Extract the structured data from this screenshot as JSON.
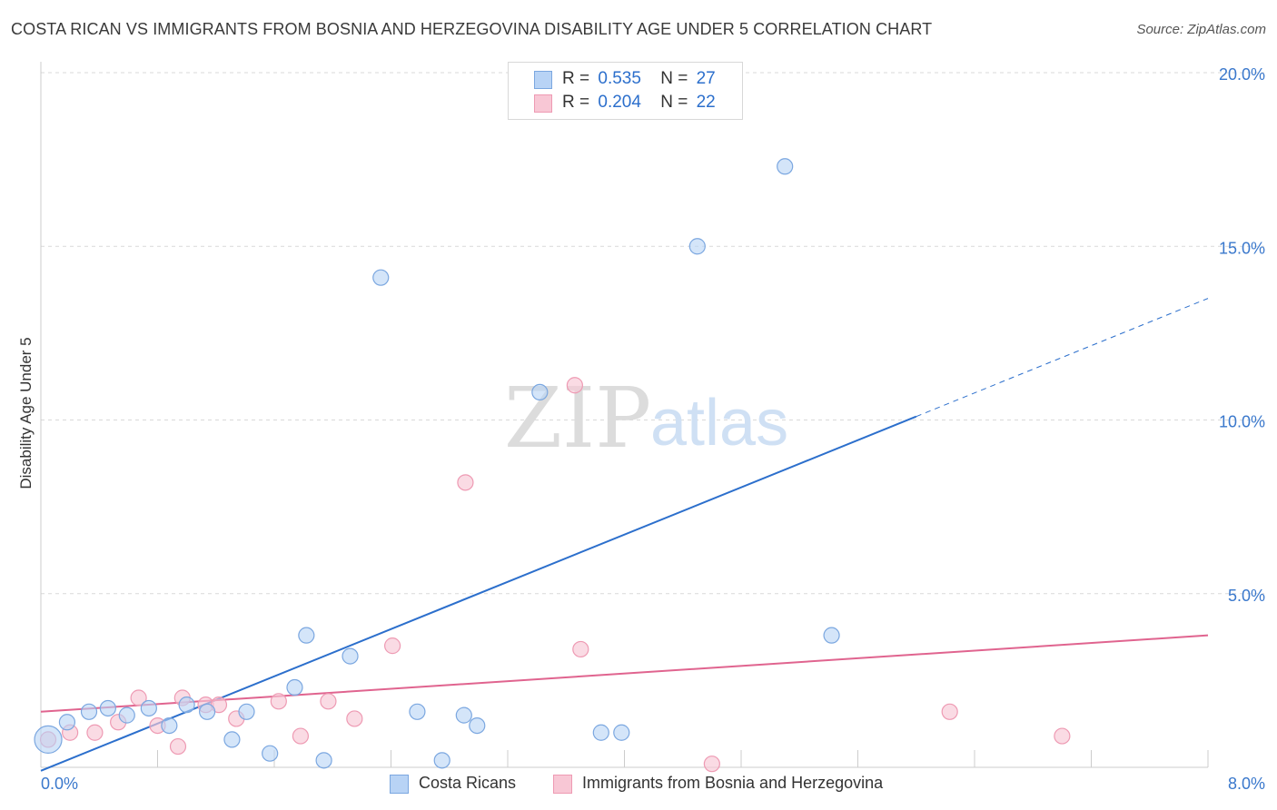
{
  "title": "COSTA RICAN VS IMMIGRANTS FROM BOSNIA AND HERZEGOVINA DISABILITY AGE UNDER 5 CORRELATION CHART",
  "source": "Source: ZipAtlas.com",
  "watermark": {
    "zip": "ZIP",
    "atlas": "atlas"
  },
  "legend": {
    "rows": [
      {
        "r_label": "R =",
        "r_value": "0.535",
        "n_label": "N =",
        "n_value": "27"
      },
      {
        "r_label": "R =",
        "r_value": "0.204",
        "n_label": "N =",
        "n_value": "22"
      }
    ]
  },
  "bottom_legend": [
    "Costa Ricans",
    "Immigrants from Bosnia and Herzegovina"
  ],
  "colors": {
    "blue_fill": "#b8d3f5",
    "blue_stroke": "#7ba7e0",
    "blue_line": "#2c6fcc",
    "pink_fill": "#f8c7d5",
    "pink_stroke": "#ee9ab3",
    "pink_line": "#e0648f",
    "tick_label": "#3a78cc",
    "grid": "#d9d9d9"
  },
  "chart_data": {
    "type": "scatter",
    "title": "COSTA RICAN VS IMMIGRANTS FROM BOSNIA AND HERZEGOVINA DISABILITY AGE UNDER 5 CORRELATION CHART",
    "xlabel": "",
    "ylabel": "Disability Age Under 5",
    "xlim": [
      0,
      8
    ],
    "ylim": [
      0,
      20
    ],
    "x_tick_labels": [
      "0.0%",
      "8.0%"
    ],
    "y_ticks": [
      5,
      10,
      15,
      20
    ],
    "y_tick_labels": [
      "5.0%",
      "10.0%",
      "15.0%",
      "20.0%"
    ],
    "grid": true,
    "legend_position": "top-center",
    "series": [
      {
        "name": "Costa Ricans",
        "r": 0.535,
        "n": 27,
        "points": [
          [
            0.05,
            0.8
          ],
          [
            0.18,
            1.3
          ],
          [
            0.33,
            1.6
          ],
          [
            0.46,
            1.7
          ],
          [
            0.59,
            1.5
          ],
          [
            0.74,
            1.7
          ],
          [
            0.88,
            1.2
          ],
          [
            1.0,
            1.8
          ],
          [
            1.14,
            1.6
          ],
          [
            1.31,
            0.8
          ],
          [
            1.41,
            1.6
          ],
          [
            1.57,
            0.4
          ],
          [
            1.74,
            2.3
          ],
          [
            1.82,
            3.8
          ],
          [
            1.94,
            0.2
          ],
          [
            2.12,
            3.2
          ],
          [
            2.33,
            14.1
          ],
          [
            2.58,
            1.6
          ],
          [
            2.75,
            0.2
          ],
          [
            2.9,
            1.5
          ],
          [
            2.99,
            1.2
          ],
          [
            3.42,
            10.8
          ],
          [
            3.84,
            1.0
          ],
          [
            3.98,
            1.0
          ],
          [
            4.5,
            15.0
          ],
          [
            5.1,
            17.3
          ],
          [
            5.42,
            3.8
          ]
        ],
        "trend": {
          "x": [
            0.0,
            6.0
          ],
          "y": [
            -0.1,
            10.1
          ],
          "dashed_to": [
            8.0,
            13.5
          ]
        }
      },
      {
        "name": "Immigrants from Bosnia and Herzegovina",
        "r": 0.204,
        "n": 22,
        "points": [
          [
            0.05,
            0.8
          ],
          [
            0.2,
            1.0
          ],
          [
            0.37,
            1.0
          ],
          [
            0.53,
            1.3
          ],
          [
            0.67,
            2.0
          ],
          [
            0.8,
            1.2
          ],
          [
            0.94,
            0.6
          ],
          [
            0.97,
            2.0
          ],
          [
            1.13,
            1.8
          ],
          [
            1.22,
            1.8
          ],
          [
            1.34,
            1.4
          ],
          [
            1.63,
            1.9
          ],
          [
            1.78,
            0.9
          ],
          [
            1.97,
            1.9
          ],
          [
            2.15,
            1.4
          ],
          [
            2.41,
            3.5
          ],
          [
            2.91,
            8.2
          ],
          [
            3.66,
            11.0
          ],
          [
            3.7,
            3.4
          ],
          [
            4.6,
            0.1
          ],
          [
            6.23,
            1.6
          ],
          [
            7.0,
            0.9
          ]
        ],
        "trend": {
          "x": [
            0.0,
            8.0
          ],
          "y": [
            1.6,
            3.8
          ]
        }
      }
    ]
  }
}
